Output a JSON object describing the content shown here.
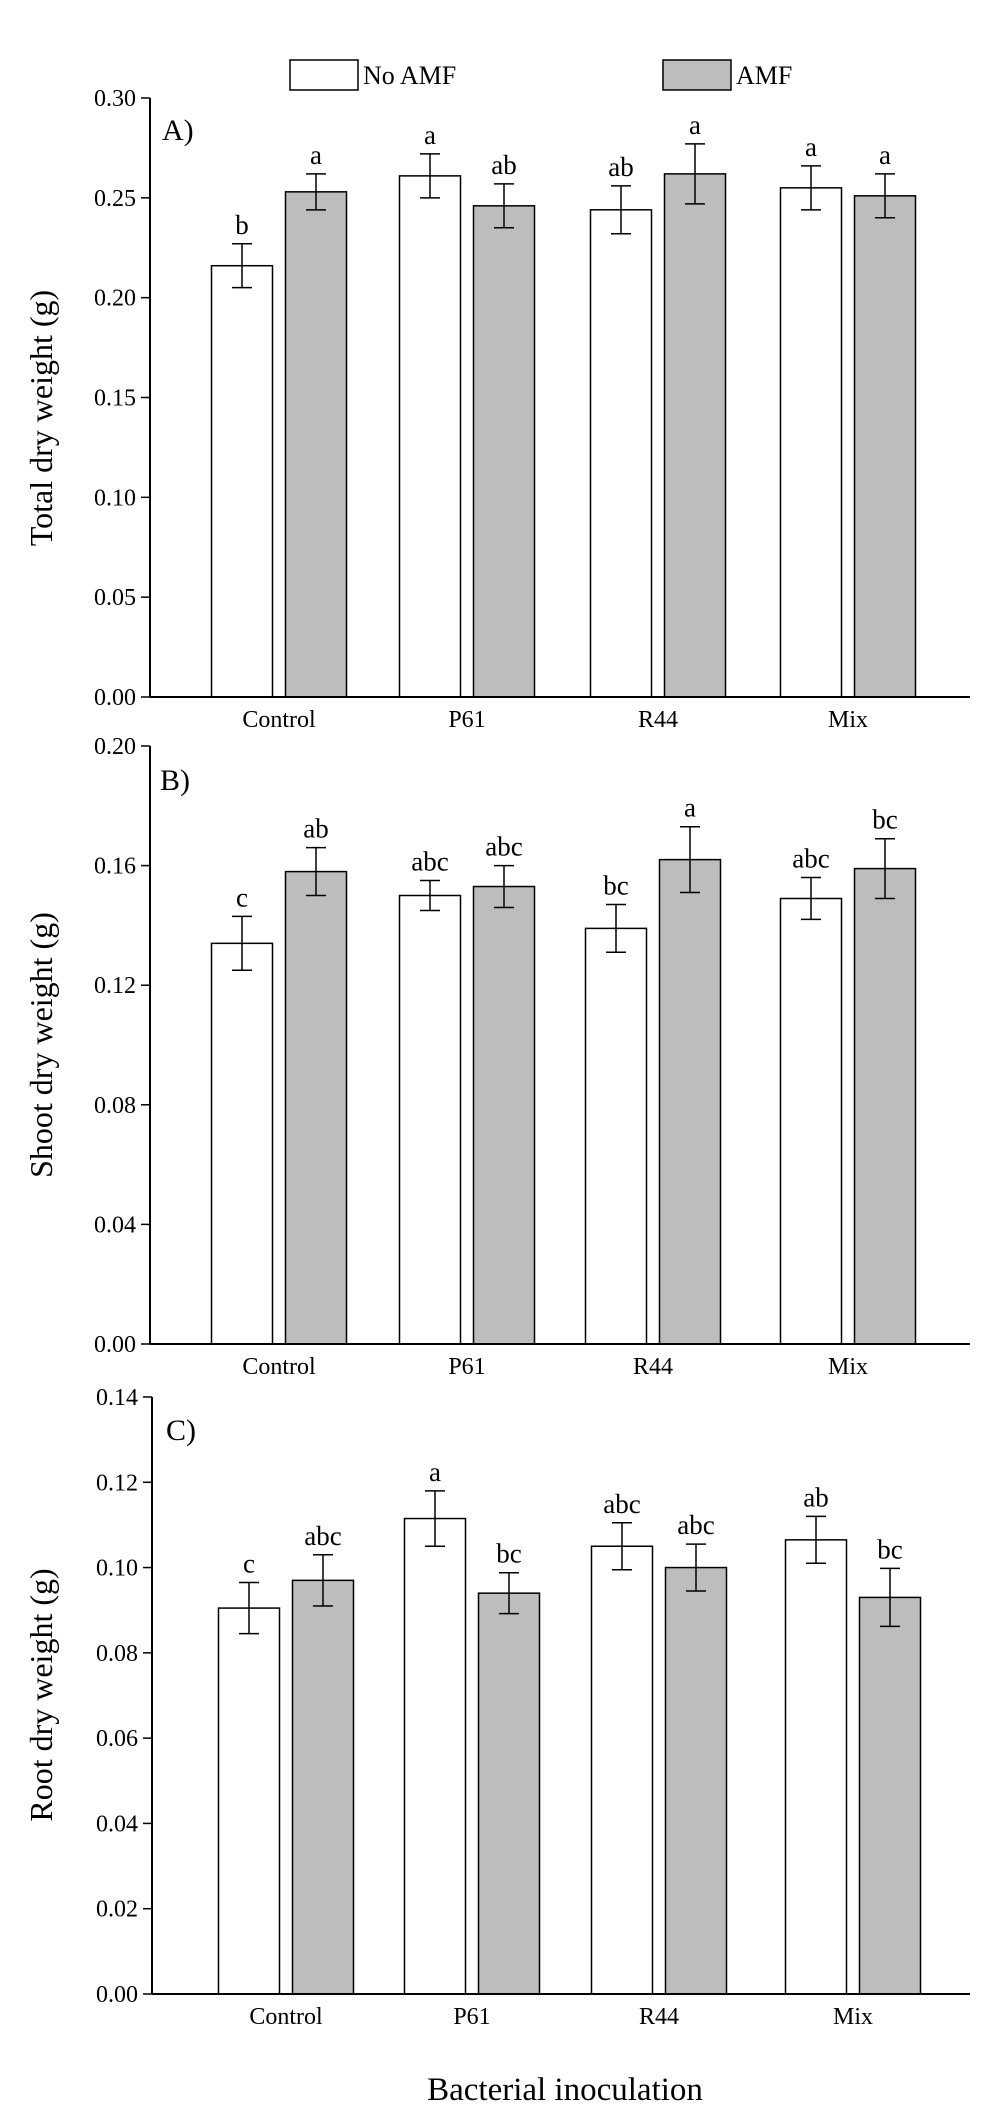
{
  "figure": {
    "legend": [
      {
        "label": "No AMF",
        "color": "#ffffff"
      },
      {
        "label": "AMF",
        "color": "#bdbdbd"
      }
    ],
    "x_title": "Bacterial inoculation",
    "colors": {
      "no_amf": "#ffffff",
      "amf": "#bdbdbd",
      "stroke": "#000000"
    }
  },
  "chart_data": [
    {
      "type": "bar",
      "panel_label": "A)",
      "ylabel": "Total dry weight (g)",
      "categories": [
        "Control",
        "P61",
        "R44",
        "Mix"
      ],
      "ylim": [
        0,
        0.3
      ],
      "yticks": [
        "0.00",
        "0.05",
        "0.10",
        "0.15",
        "0.20",
        "0.25",
        "0.30"
      ],
      "series": [
        {
          "name": "No AMF",
          "values": [
            0.216,
            0.261,
            0.244,
            0.255
          ],
          "errors": [
            0.011,
            0.011,
            0.012,
            0.011
          ],
          "letters": [
            "b",
            "a",
            "ab",
            "a"
          ]
        },
        {
          "name": "AMF",
          "values": [
            0.253,
            0.246,
            0.262,
            0.251
          ],
          "errors": [
            0.009,
            0.011,
            0.015,
            0.011
          ],
          "letters": [
            "a",
            "ab",
            "a",
            "a"
          ]
        }
      ]
    },
    {
      "type": "bar",
      "panel_label": "B)",
      "ylabel": "Shoot dry weight (g)",
      "categories": [
        "Control",
        "P61",
        "R44",
        "Mix"
      ],
      "ylim": [
        0,
        0.2
      ],
      "yticks": [
        "0.00",
        "0.04",
        "0.08",
        "0.12",
        "0.16",
        "0.20"
      ],
      "series": [
        {
          "name": "No AMF",
          "values": [
            0.134,
            0.15,
            0.139,
            0.149
          ],
          "errors": [
            0.009,
            0.005,
            0.008,
            0.007
          ],
          "letters": [
            "c",
            "abc",
            "bc",
            "abc"
          ]
        },
        {
          "name": "AMF",
          "values": [
            0.158,
            0.153,
            0.162,
            0.159
          ],
          "errors": [
            0.008,
            0.007,
            0.011,
            0.01
          ],
          "letters": [
            "ab",
            "abc",
            "a",
            "bc"
          ]
        }
      ]
    },
    {
      "type": "bar",
      "panel_label": "C)",
      "ylabel": "Root dry weight (g)",
      "categories": [
        "Control",
        "P61",
        "R44",
        "Mix"
      ],
      "ylim": [
        0,
        0.14
      ],
      "yticks": [
        "0.00",
        "0.02",
        "0.04",
        "0.06",
        "0.08",
        "0.10",
        "0.12",
        "0.14"
      ],
      "series": [
        {
          "name": "No AMF",
          "values": [
            0.0905,
            0.1115,
            0.105,
            0.1065
          ],
          "errors": [
            0.006,
            0.0065,
            0.0055,
            0.0055
          ],
          "letters": [
            "c",
            "a",
            "abc",
            "ab"
          ]
        },
        {
          "name": "AMF",
          "values": [
            0.097,
            0.094,
            0.1,
            0.093
          ],
          "errors": [
            0.006,
            0.0048,
            0.0055,
            0.0068
          ],
          "letters": [
            "abc",
            "bc",
            "abc",
            "bc"
          ]
        }
      ]
    }
  ]
}
